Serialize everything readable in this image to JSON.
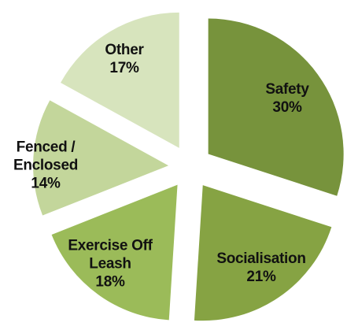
{
  "chart_data": {
    "type": "pie",
    "categories": [
      "Safety",
      "Socialisation",
      "Exercise Off Leash",
      "Fenced / Enclosed",
      "Other"
    ],
    "values": [
      30,
      21,
      18,
      14,
      17
    ],
    "value_labels": [
      "30%",
      "21%",
      "18%",
      "14%",
      "17%"
    ],
    "colors": [
      "#77933c",
      "#86a343",
      "#9bbb59",
      "#c3d69b",
      "#d7e4bd"
    ]
  }
}
